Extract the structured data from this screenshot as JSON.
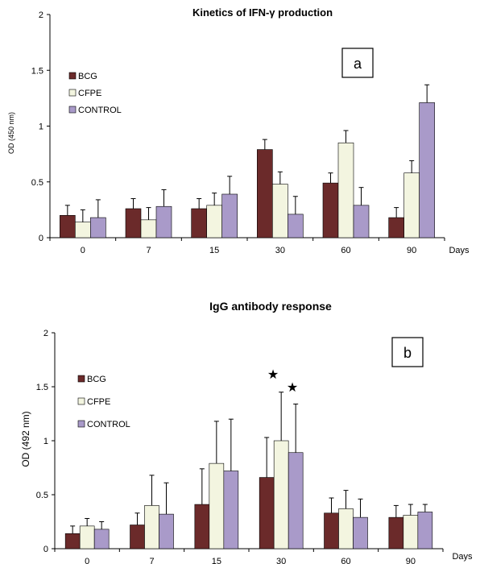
{
  "chart_data": [
    {
      "type": "bar",
      "title": "Kinetics of IFN-γ production",
      "panel_label": "a",
      "xlabel": "Days",
      "ylabel": "OD (450 nm)",
      "ylim": [
        0,
        2
      ],
      "yticks": [
        "0",
        "0.5",
        "1",
        "1.5",
        "2"
      ],
      "categories": [
        "0",
        "7",
        "15",
        "30",
        "60",
        "90"
      ],
      "grid": false,
      "legend_position": "top-left",
      "series": [
        {
          "name": "BCG",
          "color": "#6b2a2a",
          "values": [
            0.2,
            0.26,
            0.26,
            0.79,
            0.49,
            0.18
          ],
          "errors": [
            0.09,
            0.09,
            0.09,
            0.09,
            0.09,
            0.09
          ]
        },
        {
          "name": "CFPE",
          "color": "#f3f5e0",
          "values": [
            0.14,
            0.16,
            0.29,
            0.48,
            0.85,
            0.58
          ],
          "errors": [
            0.11,
            0.11,
            0.11,
            0.11,
            0.11,
            0.11
          ]
        },
        {
          "name": "CONTROL",
          "color": "#a99ac9",
          "values": [
            0.18,
            0.28,
            0.39,
            0.21,
            0.29,
            1.21
          ],
          "errors": [
            0.16,
            0.15,
            0.16,
            0.16,
            0.16,
            0.16
          ]
        }
      ]
    },
    {
      "type": "bar",
      "title": "IgG  antibody response",
      "panel_label": "b",
      "xlabel": "Days",
      "ylabel": "OD  (492 nm)",
      "ylim": [
        0,
        2
      ],
      "yticks": [
        "0",
        "0.5",
        "1",
        "1.5",
        "2"
      ],
      "categories": [
        "0",
        "7",
        "15",
        "30",
        "60",
        "90"
      ],
      "grid": false,
      "legend_position": "top-left",
      "annotations": [
        "★",
        "★"
      ],
      "series": [
        {
          "name": "BCG",
          "color": "#6b2a2a",
          "values": [
            0.14,
            0.22,
            0.41,
            0.66,
            0.33,
            0.29
          ],
          "errors": [
            0.07,
            0.11,
            0.33,
            0.37,
            0.14,
            0.11
          ]
        },
        {
          "name": "CFPE",
          "color": "#f3f5e0",
          "values": [
            0.21,
            0.4,
            0.79,
            1.0,
            0.37,
            0.31
          ],
          "errors": [
            0.07,
            0.28,
            0.39,
            0.45,
            0.17,
            0.1
          ]
        },
        {
          "name": "CONTROL",
          "color": "#a99ac9",
          "values": [
            0.18,
            0.32,
            0.72,
            0.89,
            0.29,
            0.34
          ],
          "errors": [
            0.07,
            0.29,
            0.48,
            0.45,
            0.17,
            0.07
          ]
        }
      ]
    }
  ]
}
